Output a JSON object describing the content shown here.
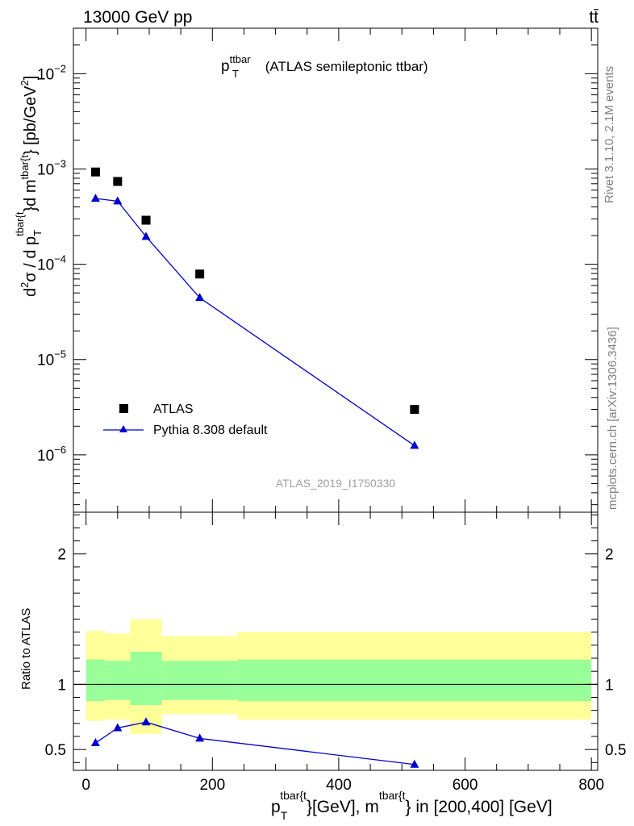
{
  "header": {
    "energy_label": "13000 GeV pp",
    "process_label": "tt̄"
  },
  "side_labels": {
    "rivet": "Rivet 3.1.10,  2.1M events",
    "mcplots": "mcplots.cern.ch [arXiv:1306.3436]"
  },
  "watermark": "ATLAS_2019_I1750330",
  "plot_title": {
    "main": "p",
    "sub": "T",
    "sup": "ttbar",
    "rest": " (ATLAS semileptonic ttbar)"
  },
  "upper_ylabel": {
    "p1": "d",
    "p1_sup": "2",
    "p2": "σ / d p",
    "p2_sub": "T",
    "p2_sup": "tbar{t",
    "p3": "}d m",
    "p3_sup": "tbar{t",
    "p4": "} [pb/GeV",
    "p4_sup": "2",
    "p5": "]"
  },
  "lower_ylabel": "Ratio to ATLAS",
  "xlabel": {
    "p1": "p",
    "p1_sub": "T",
    "p1_sup": "tbar{t",
    "p2": "}[GeV], m",
    "p2_sup": "tbar{t",
    "p3": "} in [200,400] [GeV]"
  },
  "legend": {
    "atlas": "ATLAS",
    "pythia": "Pythia 8.308 default"
  },
  "colors": {
    "mc": "#0000cc",
    "data": "#000000",
    "band_inner": "#99ff99",
    "band_outer": "#ffff99"
  },
  "chart_data": [
    {
      "type": "scatter",
      "panel": "main",
      "log_y": true,
      "xlim": [
        -20,
        810
      ],
      "ylim": [
        2.5e-07,
        0.03
      ],
      "y_ticks": [
        {
          "value": 1e-06,
          "base": "10",
          "exp": "−6"
        },
        {
          "value": 1e-05,
          "base": "10",
          "exp": "−5"
        },
        {
          "value": 0.0001,
          "base": "10",
          "exp": "−4"
        },
        {
          "value": 0.001,
          "base": "10",
          "exp": "−3"
        },
        {
          "value": 0.01,
          "base": "10",
          "exp": "−2"
        }
      ],
      "series": [
        {
          "name": "ATLAS",
          "marker": "square",
          "x": [
            15,
            50,
            95,
            180,
            520
          ],
          "y": [
            0.00093,
            0.00074,
            0.00029,
            7.9e-05,
            3e-06
          ]
        },
        {
          "name": "Pythia 8.308 default",
          "marker": "triangle",
          "line": true,
          "x": [
            15,
            50,
            95,
            180,
            520
          ],
          "y": [
            0.00049,
            0.00046,
            0.000195,
            4.45e-05,
            1.25e-06
          ]
        }
      ],
      "legend_position": "bottom-left"
    },
    {
      "type": "line",
      "panel": "ratio",
      "xlim": [
        -20,
        810
      ],
      "ylim": [
        0.34,
        2.32
      ],
      "x_ticks": [
        0,
        200,
        400,
        600,
        800
      ],
      "y_ticks": [
        0.5,
        1,
        2
      ],
      "y_tick_labels": [
        "0.5",
        "1",
        "2"
      ],
      "reference_line": 1,
      "bands": {
        "edges": [
          0,
          30,
          70,
          120,
          240,
          800
        ],
        "inner_lo": [
          0.87,
          0.88,
          0.84,
          0.88,
          0.87
        ],
        "inner_hi": [
          1.19,
          1.18,
          1.25,
          1.18,
          1.19
        ],
        "outer_lo": [
          0.72,
          0.73,
          0.62,
          0.77,
          0.73
        ],
        "outer_hi": [
          1.41,
          1.39,
          1.5,
          1.37,
          1.4
        ]
      },
      "series": [
        {
          "name": "Pythia 8.308 default",
          "marker": "triangle",
          "x": [
            15,
            50,
            95,
            180,
            520
          ],
          "y": [
            0.55,
            0.665,
            0.71,
            0.585,
            0.385
          ],
          "yerr": [
            0.008,
            0.008,
            0.01,
            0.008,
            0.025
          ]
        }
      ]
    }
  ]
}
